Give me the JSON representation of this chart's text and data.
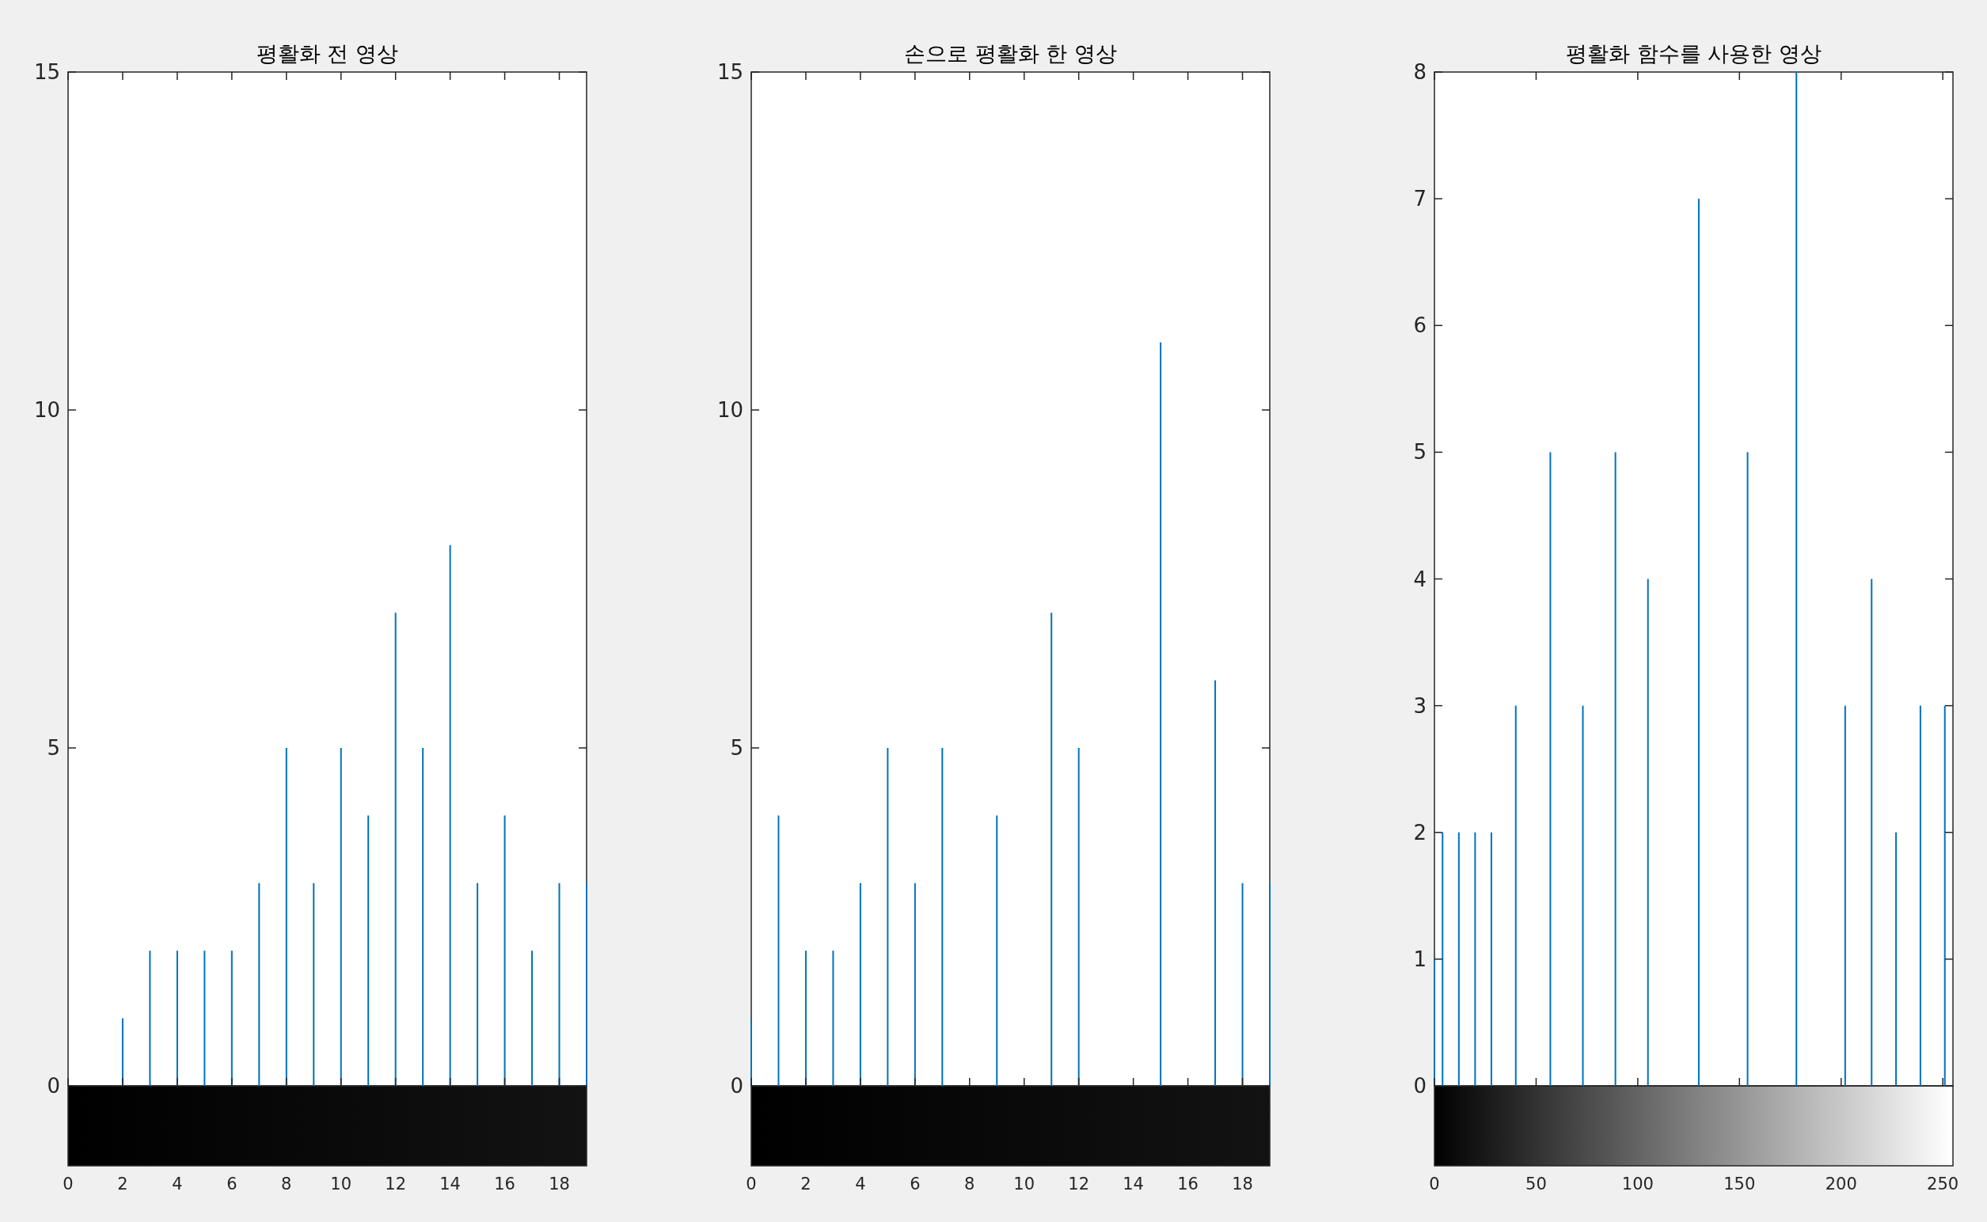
{
  "chart_data": [
    {
      "type": "bar",
      "title": "평활화 전 영상",
      "x": [
        2,
        3,
        4,
        5,
        6,
        7,
        8,
        9,
        10,
        11,
        12,
        13,
        14,
        15,
        16,
        17,
        18,
        19
      ],
      "values": [
        1,
        2,
        2,
        2,
        2,
        3,
        5,
        3,
        5,
        4,
        7,
        5,
        8,
        3,
        4,
        2,
        3,
        3
      ],
      "color": "#0072bd",
      "xlim": [
        0,
        19
      ],
      "xticks": [
        0,
        2,
        4,
        6,
        8,
        10,
        12,
        14,
        16,
        18
      ],
      "ylim": [
        0,
        15
      ],
      "yticks": [
        0,
        5,
        10,
        15
      ]
    },
    {
      "type": "bar",
      "title": "손으로 평활화 한 영상",
      "x": [
        0,
        1,
        2,
        3,
        4,
        5,
        6,
        7,
        9,
        11,
        12,
        15,
        17,
        18,
        19
      ],
      "values": [
        1,
        4,
        2,
        2,
        3,
        5,
        3,
        5,
        4,
        7,
        5,
        11,
        6,
        3,
        3
      ],
      "color": "#0072bd",
      "xlim": [
        0,
        19
      ],
      "xticks": [
        0,
        2,
        4,
        6,
        8,
        10,
        12,
        14,
        16,
        18
      ],
      "ylim": [
        0,
        15
      ],
      "yticks": [
        0,
        5,
        10,
        15
      ]
    },
    {
      "type": "bar",
      "title": "평활화 함수를 사용한 영상",
      "x": [
        0,
        4,
        12,
        20,
        28,
        40,
        57,
        73,
        89,
        105,
        130,
        154,
        178,
        202,
        215,
        227,
        239,
        251
      ],
      "values": [
        1,
        2,
        2,
        2,
        2,
        3,
        5,
        3,
        5,
        4,
        7,
        5,
        8,
        3,
        4,
        2,
        3,
        3
      ],
      "color": "#0072bd",
      "xlim": [
        0,
        255
      ],
      "xticks": [
        0,
        50,
        100,
        150,
        200,
        250
      ],
      "ylim": [
        0,
        8
      ],
      "yticks": [
        0,
        1,
        2,
        3,
        4,
        5,
        6,
        7,
        8
      ]
    }
  ]
}
